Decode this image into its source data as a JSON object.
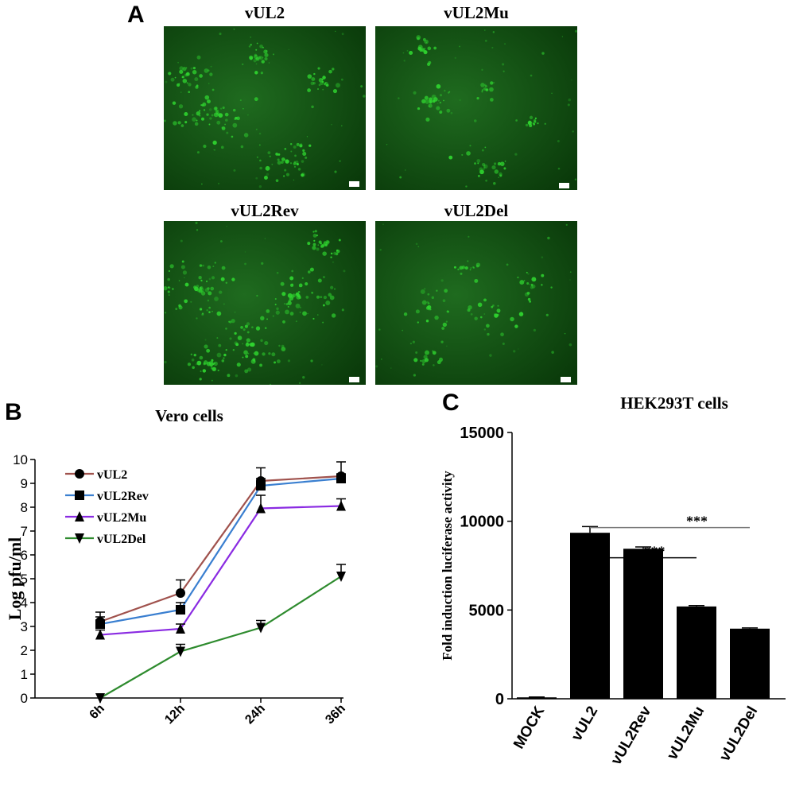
{
  "panel_a": {
    "letter": "A",
    "images": [
      {
        "label": "vUL2"
      },
      {
        "label": "vUL2Mu"
      },
      {
        "label": "vUL2Rev"
      },
      {
        "label": "vUL2Del"
      }
    ],
    "background_color": "#0a3a0a",
    "fluorescence_color": "#2fd42f"
  },
  "panel_b": {
    "letter": "B"
  },
  "panel_c": {
    "letter": "C"
  },
  "chart_data": [
    {
      "type": "line",
      "title": "Vero cells",
      "ylabel": "Log pfu/ml",
      "xlabel": "",
      "categories": [
        "6h",
        "12h",
        "24h",
        "36h"
      ],
      "ylim": [
        0,
        10
      ],
      "yticks": [
        "0",
        "1",
        "2",
        "3",
        "4",
        "5",
        "6",
        "7",
        "8",
        "9",
        "10"
      ],
      "legend_position": "top-left",
      "series": [
        {
          "name": "vUL2",
          "values": [
            3.2,
            4.4,
            9.1,
            9.3
          ],
          "errors": [
            0.4,
            0.55,
            0.55,
            0.6
          ],
          "color": "#a0524d",
          "marker": "circle"
        },
        {
          "name": "vUL2Rev",
          "values": [
            3.1,
            3.7,
            8.9,
            9.2
          ],
          "errors": [
            0.3,
            0.3,
            0.3,
            0.2
          ],
          "color": "#3a7fd0",
          "marker": "square"
        },
        {
          "name": "vUL2Mu",
          "values": [
            2.65,
            2.9,
            7.95,
            8.05
          ],
          "errors": [
            0.2,
            0.2,
            0.55,
            0.3
          ],
          "color": "#8a2be2",
          "marker": "triangle-up"
        },
        {
          "name": "vUL2Del",
          "values": [
            0.0,
            1.95,
            2.95,
            5.1
          ],
          "errors": [
            0.0,
            0.3,
            0.3,
            0.5
          ],
          "color": "#2e8b2e",
          "marker": "triangle-down"
        }
      ]
    },
    {
      "type": "bar",
      "title": "HEK293T cells",
      "ylabel": "Fold induction luciferase activity",
      "xlabel": "",
      "categories": [
        "MOCK",
        "vUL2",
        "vUL2Rev",
        "vUL2Mu",
        "vUL2Del"
      ],
      "values": [
        80,
        9350,
        8450,
        5200,
        3950
      ],
      "errors": [
        20,
        350,
        100,
        50,
        40
      ],
      "ylim": [
        0,
        15000
      ],
      "yticks": [
        "0",
        "5000",
        "10000",
        "15000"
      ],
      "bar_color": "#000000",
      "significance": [
        {
          "from": "vUL2",
          "to": "vUL2Mu",
          "label": "***"
        },
        {
          "from": "vUL2",
          "to": "vUL2Del",
          "label": "***"
        }
      ]
    }
  ]
}
